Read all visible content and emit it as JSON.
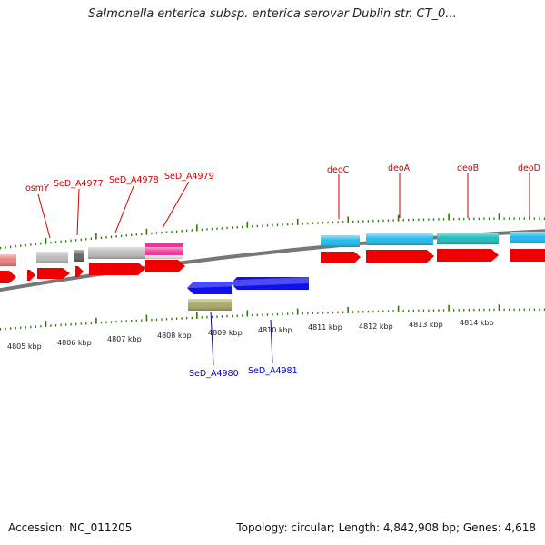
{
  "title": "Salmonella enterica subsp. enterica serovar Dublin str. CT_0...",
  "footer": {
    "accession": "Accession: NC_011205",
    "info": "Topology: circular; Length: 4,842,908 bp; Genes: 4,618"
  },
  "colors": {
    "backbone": "#777777",
    "forward_label": "#cc0000",
    "reverse_label": "#0000cc",
    "tick": "#2a7d00",
    "cds_forward": "#ee0000",
    "cds_reverse": "#0000ee",
    "cog_grey": "#bbbbbb",
    "cog_dark_grey": "#666666",
    "cog_pink": "#ee3399",
    "cog_light_blue": "#22bbee",
    "cog_teal": "#22bbbb",
    "cog_olive": "#aaaa66",
    "cog_salmon": "#f08080"
  },
  "axis": {
    "unit": "kbp",
    "tick_labels": [
      "4805 kbp",
      "4806 kbp",
      "4807 kbp",
      "4808 kbp",
      "4809 kbp",
      "4810 kbp",
      "4811 kbp",
      "4812 kbp",
      "4813 kbp",
      "4814 kbp"
    ]
  },
  "genes": {
    "forward": [
      "osmY",
      "SeD_A4977",
      "SeD_A4978",
      "SeD_A4979",
      "deoC",
      "deoA",
      "deoB",
      "deoD"
    ],
    "reverse": [
      "SeD_A4980",
      "SeD_A4981"
    ]
  }
}
